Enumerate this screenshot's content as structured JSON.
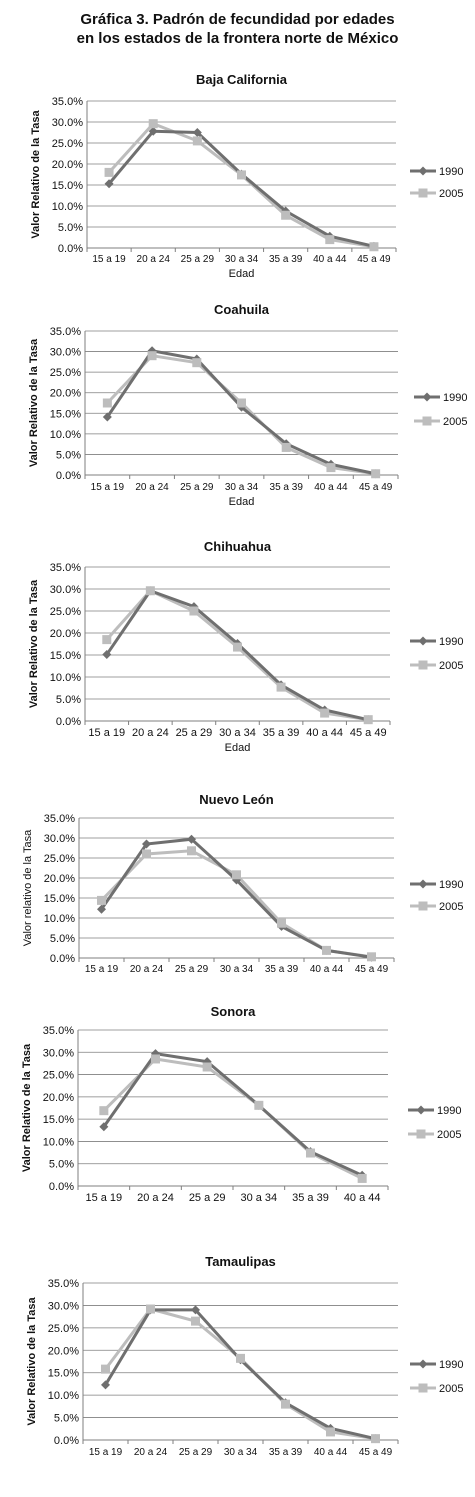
{
  "figure_title_line1": "Gráfica 3. Padrón de fecundidad por edades",
  "figure_title_line2": "en los estados de la frontera norte de México",
  "colors": {
    "series_1990": "#6f6f6f",
    "series_2005": "#bdbdbd",
    "grid": "#7f7f7f",
    "axis": "#7f7f7f"
  },
  "chart_data": [
    {
      "type": "line",
      "title": "Baja California",
      "xlabel": "Edad",
      "ylabel": "Valor Relativo de la Tasa",
      "categories": [
        "15 a 19",
        "20 a 24",
        "25 a 29",
        "30 a 34",
        "35 a 39",
        "40 a 44",
        "45 a 49"
      ],
      "ylim": [
        0,
        35
      ],
      "yticks": [
        "0.0%",
        "5.0%",
        "10.0%",
        "15.0%",
        "20.0%",
        "25.0%",
        "30.0%",
        "35.0%"
      ],
      "series": [
        {
          "name": "1990",
          "values": [
            15.3,
            27.8,
            27.5,
            17.6,
            8.8,
            2.8,
            0.4
          ]
        },
        {
          "name": "2005",
          "values": [
            18.0,
            29.6,
            25.5,
            17.4,
            7.8,
            2.0,
            0.3
          ]
        }
      ],
      "grid": true,
      "legend": "right"
    },
    {
      "type": "line",
      "title": "Coahuila",
      "xlabel": "Edad",
      "ylabel": "Valor Relativo de la Tasa",
      "categories": [
        "15 a 19",
        "20 a 24",
        "25 a 29",
        "30 a 34",
        "35 a 39",
        "40 a 44",
        "45 a 49"
      ],
      "ylim": [
        0,
        35
      ],
      "yticks": [
        "0.0%",
        "5.0%",
        "10.0%",
        "15.0%",
        "20.0%",
        "25.0%",
        "30.0%",
        "35.0%"
      ],
      "series": [
        {
          "name": "1990",
          "values": [
            14.1,
            30.2,
            28.2,
            16.5,
            7.6,
            2.6,
            0.3
          ]
        },
        {
          "name": "2005",
          "values": [
            17.5,
            29.0,
            27.3,
            17.5,
            6.7,
            1.8,
            0.3
          ]
        }
      ],
      "grid": true,
      "legend": "right"
    },
    {
      "type": "line",
      "title": "Chihuahua",
      "xlabel": "Edad",
      "ylabel": "Valor Relativo de la Tasa",
      "categories": [
        "15 a 19",
        "20 a 24",
        "25 a 29",
        "30 a 34",
        "35 a 39",
        "40 a 44",
        "45 a 49"
      ],
      "ylim": [
        0,
        35
      ],
      "yticks": [
        "0.0%",
        "5.0%",
        "10.0%",
        "15.0%",
        "20.0%",
        "25.0%",
        "30.0%",
        "35.0%"
      ],
      "series": [
        {
          "name": "1990",
          "values": [
            15.1,
            29.6,
            26.0,
            17.6,
            8.2,
            2.5,
            0.3
          ]
        },
        {
          "name": "2005",
          "values": [
            18.5,
            29.6,
            25.0,
            16.8,
            7.7,
            1.8,
            0.3
          ]
        }
      ],
      "grid": true,
      "legend": "right"
    },
    {
      "type": "line",
      "title": "Nuevo León",
      "xlabel": "",
      "ylabel": "Valor relativo de la Tasa",
      "categories": [
        "15 a 19",
        "20 a 24",
        "25 a 29",
        "30 a 34",
        "35 a 39",
        "40 a 44",
        "45 a 49"
      ],
      "ylim": [
        0,
        35
      ],
      "yticks": [
        "0.0%",
        "5.0%",
        "10.0%",
        "15.0%",
        "20.0%",
        "25.0%",
        "30.0%",
        "35.0%"
      ],
      "series": [
        {
          "name": "1990",
          "values": [
            12.2,
            28.5,
            29.7,
            19.5,
            7.9,
            1.9,
            0.2
          ]
        },
        {
          "name": "2005",
          "values": [
            14.4,
            26.0,
            26.8,
            20.8,
            8.7,
            1.9,
            0.3
          ]
        }
      ],
      "grid": true,
      "legend": "right"
    },
    {
      "type": "line",
      "title": "Sonora",
      "xlabel": "",
      "ylabel": "Valor Relativo de la Tasa",
      "categories": [
        "15 a 19",
        "20 a 24",
        "25 a 29",
        "30 a 34",
        "35 a 39",
        "40 a 44"
      ],
      "ylim": [
        0,
        35
      ],
      "yticks": [
        "0.0%",
        "5.0%",
        "10.0%",
        "15.0%",
        "20.0%",
        "25.0%",
        "30.0%",
        "35.0%"
      ],
      "series": [
        {
          "name": "1990",
          "values": [
            13.3,
            29.7,
            27.9,
            18.1,
            7.7,
            2.4
          ]
        },
        {
          "name": "2005",
          "values": [
            16.9,
            28.5,
            26.7,
            18.1,
            7.4,
            1.7
          ]
        }
      ],
      "grid": true,
      "legend": "right"
    },
    {
      "type": "line",
      "title": "Tamaulipas",
      "xlabel": "",
      "ylabel": "Valor Relativo de la Tasa",
      "categories": [
        "15 a 19",
        "20 a 24",
        "25 a 29",
        "30 a 34",
        "35 a 39",
        "40 a 44",
        "45 a 49"
      ],
      "ylim": [
        0,
        35
      ],
      "yticks": [
        "0.0%",
        "5.0%",
        "10.0%",
        "15.0%",
        "20.0%",
        "25.0%",
        "30.0%",
        "35.0%"
      ],
      "series": [
        {
          "name": "1990",
          "values": [
            12.3,
            29.0,
            29.0,
            17.9,
            8.3,
            2.6,
            0.3
          ]
        },
        {
          "name": "2005",
          "values": [
            15.8,
            29.2,
            26.5,
            18.2,
            8.0,
            1.8,
            0.3
          ]
        }
      ],
      "grid": true,
      "legend": "right"
    }
  ]
}
